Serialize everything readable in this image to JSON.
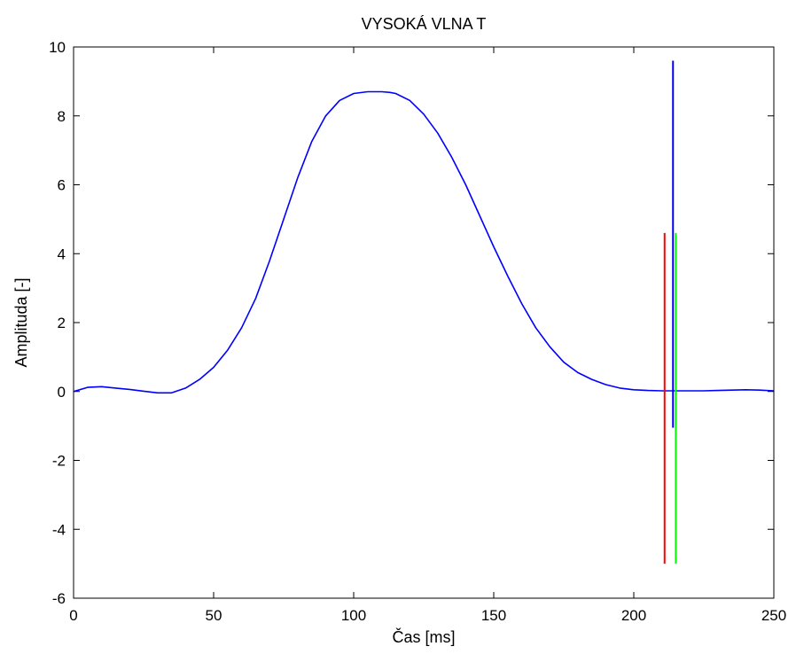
{
  "chart_data": {
    "type": "line",
    "title": "VYSOKÁ VLNA T",
    "xlabel": "Čas [ms]",
    "ylabel": "Amplituda [-]",
    "xlim": [
      0,
      250
    ],
    "ylim": [
      -6,
      10
    ],
    "xticks": [
      0,
      50,
      100,
      150,
      200,
      250
    ],
    "yticks": [
      -6,
      -4,
      -2,
      0,
      2,
      4,
      6,
      8,
      10
    ],
    "grid": false,
    "legend": "none",
    "series": [
      {
        "color": "#0000ff",
        "x": [
          0,
          5,
          10,
          15,
          20,
          25,
          30,
          35,
          40,
          45,
          50,
          55,
          60,
          65,
          70,
          75,
          80,
          85,
          90,
          95,
          100,
          105,
          110,
          113,
          115,
          120,
          125,
          130,
          135,
          140,
          145,
          150,
          155,
          160,
          165,
          170,
          175,
          180,
          185,
          190,
          195,
          200,
          205,
          210,
          213,
          215,
          220,
          225,
          230,
          235,
          240,
          245,
          250
        ],
        "y": [
          0.0,
          0.12,
          0.14,
          0.1,
          0.06,
          0.01,
          -0.04,
          -0.04,
          0.1,
          0.35,
          0.7,
          1.2,
          1.85,
          2.7,
          3.8,
          5.0,
          6.2,
          7.25,
          8.0,
          8.45,
          8.65,
          8.7,
          8.7,
          8.68,
          8.65,
          8.45,
          8.05,
          7.5,
          6.8,
          6.0,
          5.1,
          4.2,
          3.35,
          2.55,
          1.85,
          1.3,
          0.85,
          0.55,
          0.35,
          0.2,
          0.1,
          0.05,
          0.03,
          0.02,
          0.02,
          0.02,
          0.02,
          0.02,
          0.03,
          0.04,
          0.05,
          0.04,
          0.02
        ]
      }
    ],
    "markers": [
      {
        "color": "#ff0000",
        "x": 211,
        "y_range": [
          -5.0,
          4.6
        ]
      },
      {
        "color": "#00ff00",
        "x": 215,
        "y_range": [
          -5.0,
          4.6
        ]
      },
      {
        "color": "#0000ff",
        "x": 214,
        "y_range": [
          -1.05,
          9.6
        ]
      }
    ]
  }
}
